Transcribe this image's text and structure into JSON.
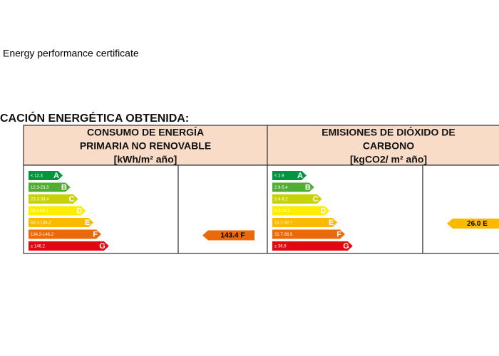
{
  "caption": "Energy performance certificate",
  "heading": "CACIÓN ENERGÉTICA OBTENIDA:",
  "panels": [
    {
      "title": [
        "CONSUMO DE ENERGÍA",
        "PRIMARIA NO RENOVABLE",
        "[kWh/m² año]"
      ],
      "scale": [
        {
          "range": "< 12.3",
          "letter": "A"
        },
        {
          "range": "12.3-23.3",
          "letter": "B"
        },
        {
          "range": "23.3-38.4",
          "letter": "C"
        },
        {
          "range": "38.4-63.1",
          "letter": "D"
        },
        {
          "range": "63.1-134.2",
          "letter": "E"
        },
        {
          "range": "134.2-146.2",
          "letter": "F"
        },
        {
          "range": "≥ 146.2",
          "letter": "G"
        }
      ],
      "rating": "143.4 F",
      "rating_row": 5
    },
    {
      "title": [
        "EMISIONES DE DIÓXIDO DE",
        "CARBONO",
        "[kgCO2/ m² año]"
      ],
      "scale": [
        {
          "range": "< 2.9",
          "letter": "A"
        },
        {
          "range": "2.9-5.4",
          "letter": "B"
        },
        {
          "range": "5.4-8.2",
          "letter": "C"
        },
        {
          "range": "8.2-14.1",
          "letter": "D"
        },
        {
          "range": "14.1-32.7",
          "letter": "E"
        },
        {
          "range": "32.7-36.9",
          "letter": "F"
        },
        {
          "range": "≥ 36.9",
          "letter": "G"
        }
      ],
      "rating": "26.0 E",
      "rating_row": 4
    }
  ]
}
